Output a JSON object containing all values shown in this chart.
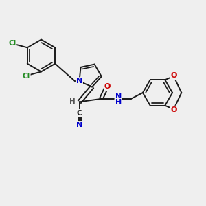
{
  "background_color": "#efefef",
  "bond_color": "#1a1a1a",
  "bond_width": 1.4,
  "figsize": [
    3.0,
    3.0
  ],
  "dpi": 100,
  "xlim": [
    0,
    10
  ],
  "ylim": [
    0,
    10
  ],
  "cl_color": "#228b22",
  "n_color": "#0000cc",
  "o_color": "#cc0000",
  "h_color": "#555555",
  "c_color": "#1a1a1a"
}
